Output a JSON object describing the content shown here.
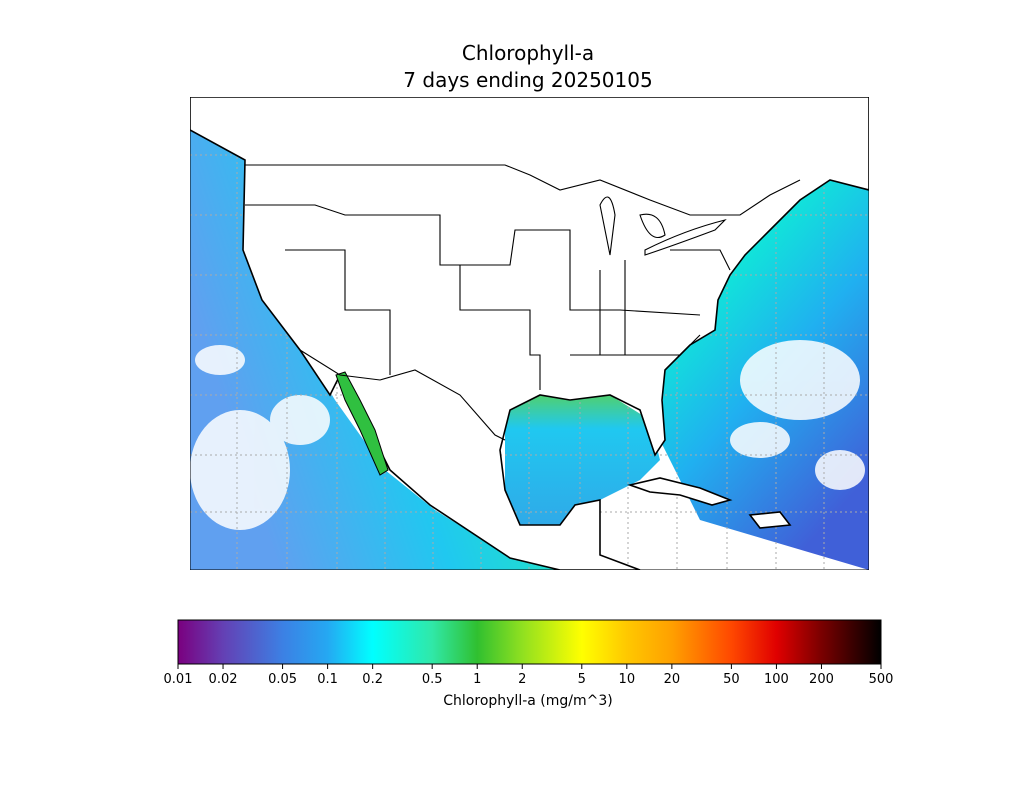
{
  "chart_data": {
    "type": "map",
    "title": "Chlorophyll-a",
    "subtitle": "7 days ending 20250105",
    "colorbar": {
      "label": "Chlorophyll-a (mg/m^3)",
      "log_scale": true,
      "xlim": [
        0.01,
        500
      ],
      "xticks": [
        0.01,
        0.02,
        0.05,
        0.1,
        0.2,
        0.5,
        1,
        2,
        5,
        10,
        20,
        50,
        100,
        200,
        500
      ],
      "colors": [
        "#7a007f",
        "#6440b4",
        "#3c80e4",
        "#25a8f2",
        "#00ffff",
        "#30e8a8",
        "#30c030",
        "#90e020",
        "#ffff00",
        "#ffc800",
        "#ffa000",
        "#ff4800",
        "#e00000",
        "#7a0000",
        "#000000"
      ]
    }
  }
}
